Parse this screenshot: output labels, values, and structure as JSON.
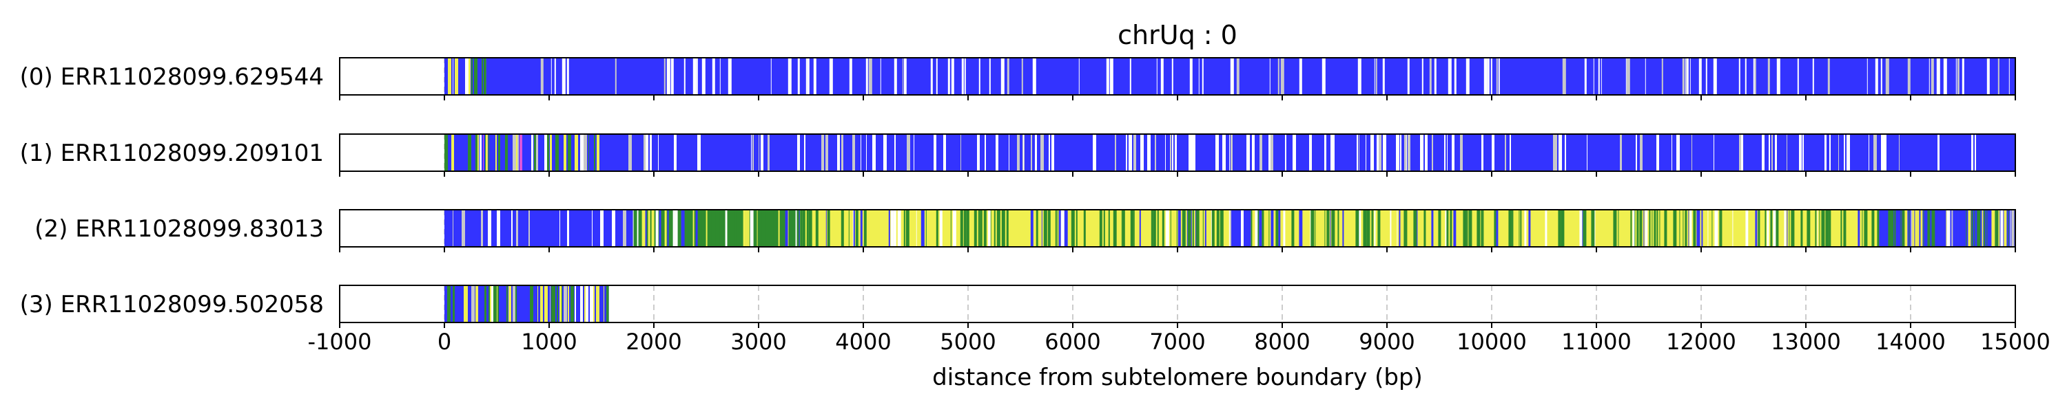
{
  "chart_data": {
    "type": "heatmap",
    "title": "chrUq : 0",
    "xlabel": "distance from subtelomere boundary (bp)",
    "xlim": [
      -1000,
      15000
    ],
    "grid": "x-only, dashed",
    "legend": "none",
    "x_ticks": [
      -1000,
      0,
      1000,
      2000,
      3000,
      4000,
      5000,
      6000,
      7000,
      8000,
      9000,
      10000,
      11000,
      12000,
      13000,
      14000,
      15000
    ],
    "x_tick_labels": [
      "-1000",
      "0",
      "1000",
      "2000",
      "3000",
      "4000",
      "5000",
      "6000",
      "7000",
      "8000",
      "9000",
      "10000",
      "11000",
      "12000",
      "13000",
      "14000",
      "15000"
    ],
    "colors": {
      "blue": "#3333ff",
      "green": "#2e8b2e",
      "yellow": "#f0f050",
      "white": "#ffffff",
      "grey": "#c8c8c8",
      "magenta": "#dd55dd",
      "grid": "#cccccc",
      "frame": "#000000"
    },
    "reads": [
      {
        "label": "(0) ERR11028099.629544",
        "start": 0,
        "end": 15000,
        "segments": [
          {
            "from": 0,
            "to": 400,
            "color": "mixed"
          },
          {
            "from": 400,
            "to": 15000,
            "color": "blue"
          }
        ]
      },
      {
        "label": "(1) ERR11028099.209101",
        "start": 0,
        "end": 15000,
        "segments": [
          {
            "from": 0,
            "to": 1500,
            "color": "mixed"
          },
          {
            "from": 1500,
            "to": 15000,
            "color": "blue"
          }
        ]
      },
      {
        "label": "(2) ERR11028099.83013",
        "start": 0,
        "end": 15000,
        "segments": [
          {
            "from": 0,
            "to": 1800,
            "color": "blue"
          },
          {
            "from": 1800,
            "to": 3400,
            "color": "green"
          },
          {
            "from": 3400,
            "to": 7500,
            "color": "yellow"
          },
          {
            "from": 7500,
            "to": 7700,
            "color": "blue"
          },
          {
            "from": 7700,
            "to": 11700,
            "color": "yellow"
          },
          {
            "from": 11700,
            "to": 13700,
            "color": "yellow"
          },
          {
            "from": 13700,
            "to": 15000,
            "color": "mixed"
          }
        ]
      },
      {
        "label": "(3) ERR11028099.502058",
        "start": 0,
        "end": 1570,
        "segments": [
          {
            "from": 0,
            "to": 1570,
            "color": "mixed"
          }
        ]
      }
    ]
  }
}
